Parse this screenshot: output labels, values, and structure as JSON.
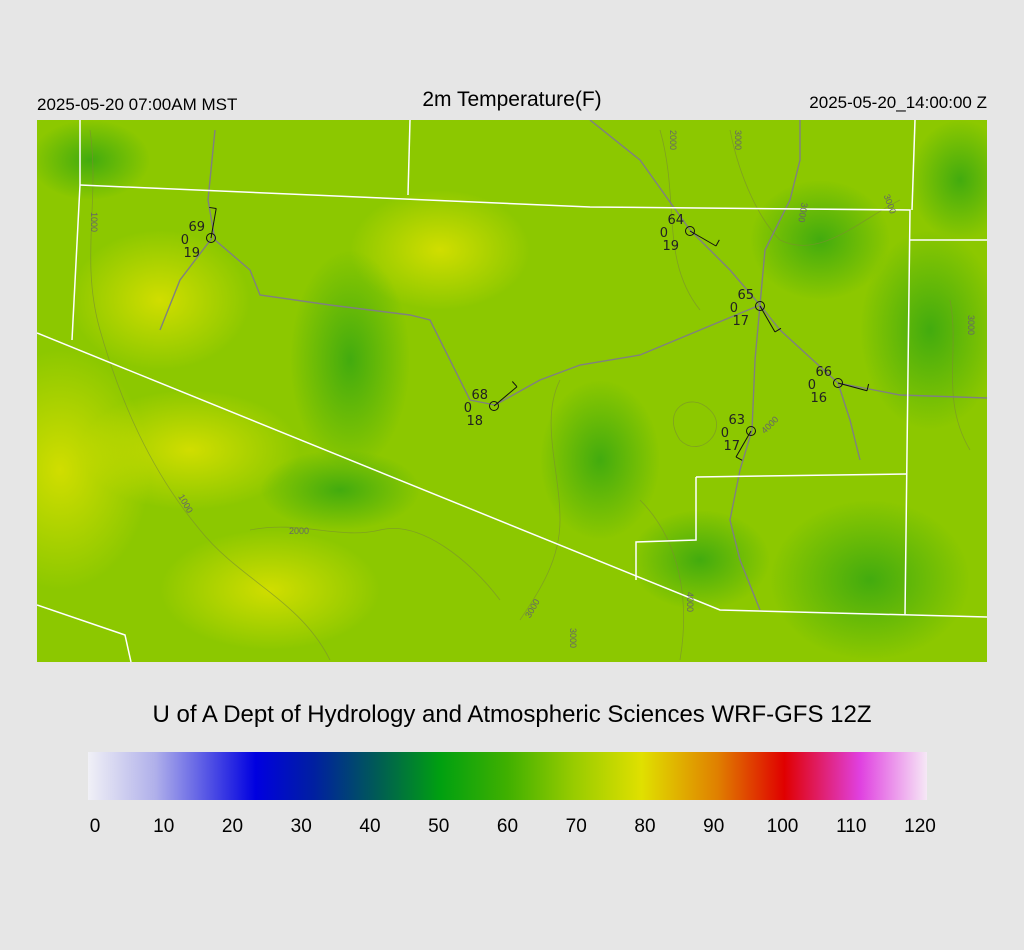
{
  "header": {
    "left": "2025-05-20 07:00AM MST",
    "title": "2m Temperature(F)",
    "right": "2025-05-20_14:00:00 Z"
  },
  "stations": [
    {
      "temp": 69,
      "wind": 0,
      "dew": 19
    },
    {
      "temp": 64,
      "wind": 0,
      "dew": 19
    },
    {
      "temp": 65,
      "wind": 0,
      "dew": 17
    },
    {
      "temp": 68,
      "wind": 0,
      "dew": 18
    },
    {
      "temp": 66,
      "wind": 0,
      "dew": 16
    },
    {
      "temp": 63,
      "wind": 0,
      "dew": 17
    }
  ],
  "contour_labels": [
    "1000",
    "1000",
    "2000",
    "3000",
    "3000",
    "2000",
    "3000",
    "3000",
    "3000",
    "3000",
    "4000",
    "4000"
  ],
  "credit": "U of A Dept of Hydrology and Atmospheric Sciences WRF-GFS 12Z",
  "colorbar": {
    "ticks": [
      0,
      10,
      20,
      30,
      40,
      50,
      60,
      70,
      80,
      90,
      100,
      110,
      120
    ]
  }
}
